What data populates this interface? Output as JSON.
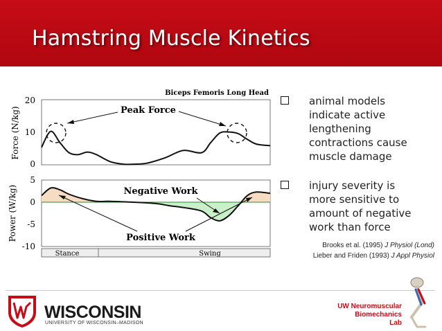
{
  "slide": {
    "title": "Hamstring Muscle Kinetics"
  },
  "figure": {
    "muscle_label": "Biceps Femoris Long Head",
    "force_ylabel": "Force (N/kg)",
    "power_ylabel": "Power (W/kg)",
    "force_ticks": [
      "20",
      "10",
      "0"
    ],
    "power_ticks": [
      "5",
      "0",
      "-5",
      "-10"
    ],
    "annotations": {
      "peak_force": "Peak Force",
      "negative_work": "Negative Work",
      "positive_work": "Positive Work"
    },
    "phases": {
      "stance": "Stance",
      "swing": "Swing"
    }
  },
  "chart_data": [
    {
      "type": "line",
      "ylabel": "Force (N/kg)",
      "ylim": [
        0,
        20
      ],
      "yticks": [
        0,
        10,
        20
      ],
      "x": [
        0,
        4,
        8,
        12,
        16,
        20,
        24,
        30,
        36,
        40,
        46,
        54,
        62,
        70,
        74,
        78,
        82,
        86,
        90,
        94,
        100
      ],
      "values": [
        5.5,
        10.5,
        7,
        3.8,
        3.2,
        4,
        3.2,
        1,
        0.2,
        0.2,
        0.5,
        2.2,
        4.5,
        3.8,
        7,
        10,
        10.3,
        9.8,
        8,
        6.5,
        6
      ],
      "grid": false
    },
    {
      "type": "area",
      "ylabel": "Power (W/kg)",
      "ylim": [
        -10,
        5
      ],
      "yticks": [
        -10,
        -5,
        0,
        5
      ],
      "x": [
        0,
        4,
        8,
        12,
        18,
        24,
        30,
        40,
        50,
        56,
        62,
        70,
        74,
        78,
        82,
        86,
        90,
        94,
        100
      ],
      "values": [
        1.5,
        3.2,
        2.8,
        1.8,
        0.8,
        0.2,
        0.2,
        0,
        -0.3,
        -0.8,
        -1.2,
        -2,
        -3.5,
        -4.2,
        -3,
        -0.8,
        1.5,
        2.3,
        2
      ],
      "positive_fill": "#f7dcc4",
      "negative_fill": "#c9f0c9",
      "grid": false
    }
  ],
  "bullets": [
    {
      "text": "animal models indicate active lengthening contractions cause muscle damage"
    },
    {
      "text": "injury severity is more sensitive to amount of negative work than force"
    }
  ],
  "references": [
    {
      "authors": "Brooks et al. (1995) ",
      "journal": "J Physiol (Lond)"
    },
    {
      "authors": "Lieber and Friden (1993) ",
      "journal": "J Appl Physiol"
    }
  ],
  "footer": {
    "university_name": "WISCONSIN",
    "university_sub": "UNIVERSITY OF WISCONSIN–MADISON",
    "lab_line1": "UW Neuromuscular",
    "lab_line2": "Biomechanics",
    "lab_line3": "Lab"
  },
  "colors": {
    "header_red": "#c60c16",
    "positive_work_fill": "#f7dcc4",
    "negative_work_fill": "#c9f0c9",
    "lab_red": "#c60c16"
  }
}
